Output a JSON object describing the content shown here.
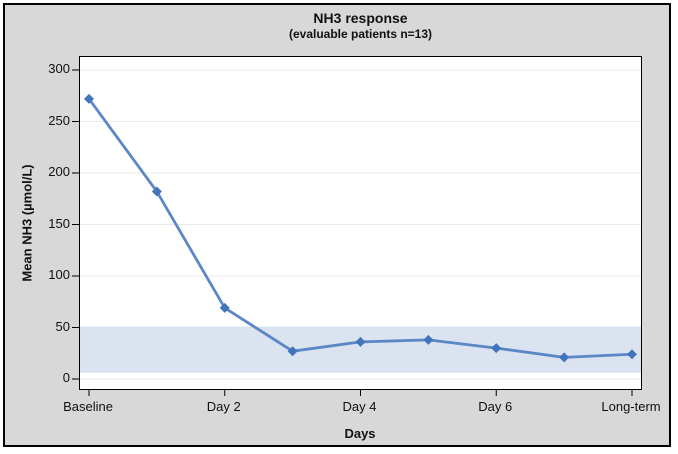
{
  "chart_data": {
    "type": "line",
    "title": "NH3 response",
    "subtitle": "(evaluable patients n=13)",
    "xlabel": "Days",
    "ylabel": "Mean NH3 (µmol/L)",
    "x_tick_labels": [
      "Baseline",
      "Day 2",
      "Day 4",
      "Day 6",
      "Long-term"
    ],
    "x_tick_indices": [
      0,
      2,
      4,
      6,
      8
    ],
    "series": [
      {
        "name": "Mean NH3",
        "values": [
          272,
          182,
          69,
          27,
          36,
          38,
          30,
          21,
          24
        ]
      }
    ],
    "ylim": [
      0,
      300
    ],
    "y_ticks": [
      0,
      50,
      100,
      150,
      200,
      250,
      300
    ],
    "reference_band": {
      "from": 6,
      "to": 51
    },
    "grid": true,
    "legend_position": "none",
    "marker": "diamond",
    "colors": {
      "line": "#5b87c6",
      "marker": "#4274bc",
      "band": "#dbe3f0",
      "grid": "#ebebeb",
      "outer_background": "#d8d8d8",
      "plot_background": "#ffffff",
      "border": "#000000"
    }
  }
}
